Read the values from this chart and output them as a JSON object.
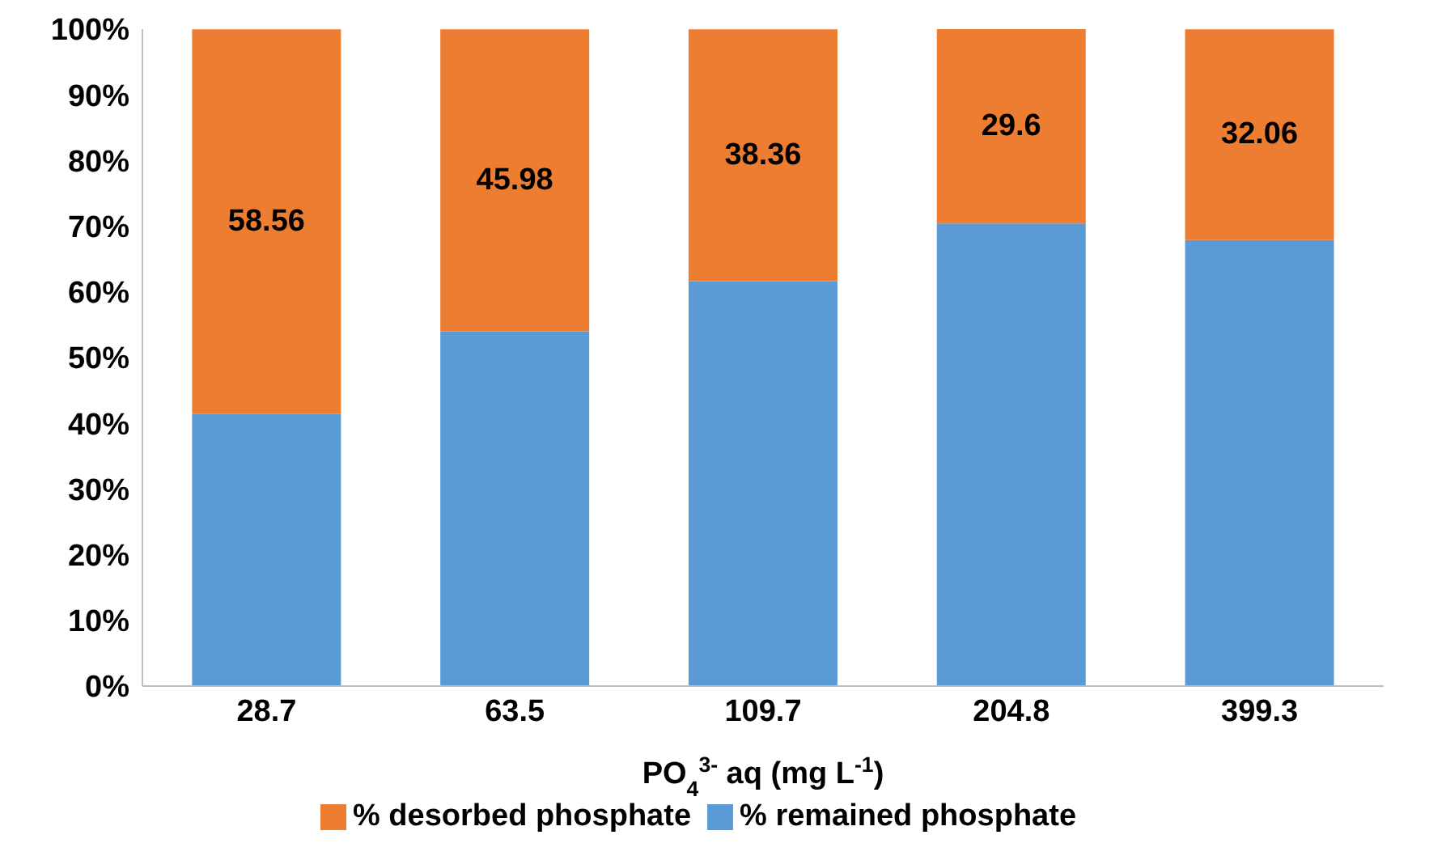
{
  "chart_data": {
    "type": "bar",
    "stacked": true,
    "xlabel": "PO$_{4}$$^{3-}$ aq (mg L$^{-1}$)",
    "categories": [
      "28.7",
      "63.5",
      "109.7",
      "204.8",
      "399.3"
    ],
    "series": [
      {
        "name": "% remained phosphate",
        "color": "#5b9bd5",
        "values": [
          41.4,
          54.0,
          61.6,
          70.4,
          67.9
        ]
      },
      {
        "name": "% desorbed phosphate",
        "color": "#ed7d31",
        "values": [
          58.56,
          45.98,
          38.36,
          29.6,
          32.06
        ],
        "value_labels": [
          "58.56",
          "45.98",
          "38.36",
          "29.6",
          "32.06"
        ]
      }
    ],
    "ylim": [
      0,
      100
    ],
    "yticks": [
      {
        "value": 0,
        "label": "0%"
      },
      {
        "value": 10,
        "label": "10%"
      },
      {
        "value": 20,
        "label": "20%"
      },
      {
        "value": 30,
        "label": "30%"
      },
      {
        "value": 40,
        "label": "40%"
      },
      {
        "value": 50,
        "label": "50%"
      },
      {
        "value": 60,
        "label": "60%"
      },
      {
        "value": 70,
        "label": "70%"
      },
      {
        "value": 80,
        "label": "80%"
      },
      {
        "value": 90,
        "label": "90%"
      },
      {
        "value": 100,
        "label": "100%"
      }
    ],
    "legend": "bottom"
  }
}
